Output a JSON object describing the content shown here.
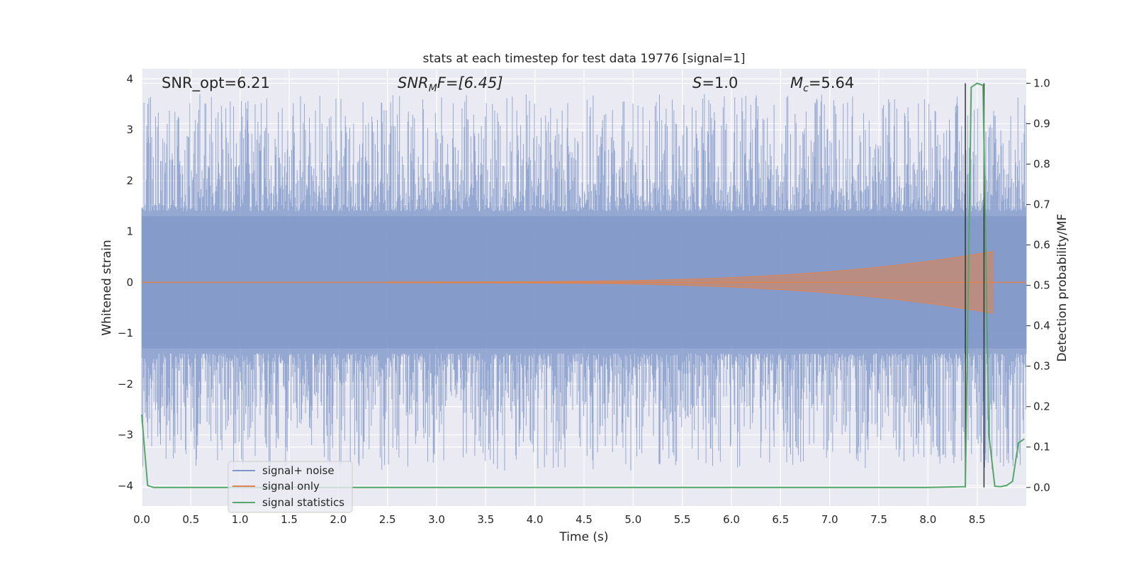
{
  "chart_data": {
    "type": "line",
    "title": "stats at each timestep for test data 19776 [signal=1]",
    "xlabel": "Time (s)",
    "ylabel": "Whitened strain",
    "y2label": "Detection probability/MF",
    "xlim": [
      0,
      9.0
    ],
    "ylim": [
      -4.4,
      4.2
    ],
    "y2lim": [
      -0.046,
      1.036
    ],
    "xticks": [
      "0.0",
      "0.5",
      "1.0",
      "1.5",
      "2.0",
      "2.5",
      "3.0",
      "3.5",
      "4.0",
      "4.5",
      "5.0",
      "5.5",
      "6.0",
      "6.5",
      "7.0",
      "7.5",
      "8.0",
      "8.5"
    ],
    "yticks": [
      "4",
      "3",
      "2",
      "1",
      "0",
      "−1",
      "−2",
      "−3",
      "−4"
    ],
    "y2ticks": [
      "1.0",
      "0.9",
      "0.8",
      "0.7",
      "0.6",
      "0.5",
      "0.4",
      "0.3",
      "0.2",
      "0.1",
      "0.0"
    ],
    "grid": true,
    "legend_position": "lower-left",
    "annotations": {
      "snr_opt": "SNR_opt=6.21",
      "snr_mf_main": "SNR",
      "snr_mf_sub": "M",
      "snr_mf_rest": "F=[6.45]",
      "s_main": "S",
      "s_rest": "=1.0",
      "mc_main": "M",
      "mc_sub": "c",
      "mc_rest": "=5.64"
    },
    "vertical_lines_x": [
      8.38,
      8.57
    ],
    "series": [
      {
        "name": "signal+ noise",
        "color": "#7f97c8",
        "description_values": "whitened strain noise, approx. uniform amplitude ±1.3 with peaks up to ±3.8",
        "envelope_y": [
          -1.3,
          1.3
        ],
        "peak_range": [
          -4.0,
          3.8
        ]
      },
      {
        "name": "signal only",
        "color": "#dd8452",
        "chirp_start_x": 2.5,
        "chirp_end_x": 8.66,
        "chirp_max_amplitude": 0.6
      },
      {
        "name": "signal statistics",
        "color": "#55a868",
        "x": [
          0.0,
          0.03,
          0.06,
          0.12,
          0.2,
          1.0,
          2.0,
          3.0,
          4.0,
          5.0,
          6.0,
          7.0,
          8.0,
          8.38,
          8.44,
          8.5,
          8.56,
          8.62,
          8.68,
          8.74,
          8.8,
          8.86,
          8.92,
          8.98
        ],
        "y": [
          0.18,
          0.09,
          0.005,
          0.0,
          0.0,
          0.0,
          0.0,
          0.0,
          0.0,
          0.0,
          0.0,
          0.0,
          0.0,
          0.002,
          0.99,
          1.0,
          0.995,
          0.13,
          0.003,
          0.002,
          0.005,
          0.015,
          0.11,
          0.12
        ]
      }
    ]
  },
  "colors": {
    "plot_bg": "#eaeaf2",
    "grid": "#ffffff",
    "vline": "#333333"
  }
}
